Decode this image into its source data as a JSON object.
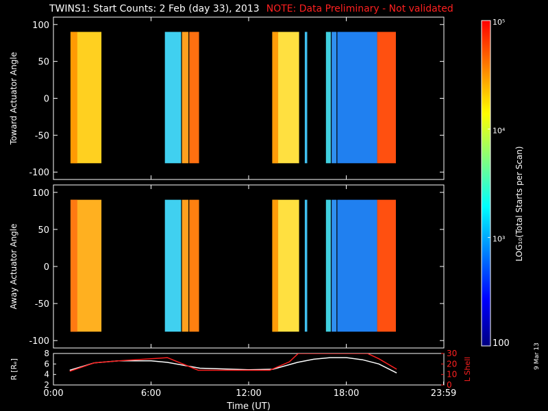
{
  "header": {
    "title": "TWINS1: Start Counts:  2 Feb (day  33), 2013",
    "note": "NOTE: Data Preliminary - Not validated"
  },
  "datestamp": "9 Mar 13",
  "colors": {
    "background": "#000000",
    "axes": "#ffffff",
    "note": "#ff2020",
    "lshell": "#ff2020",
    "radius": "#ffffff"
  },
  "chart_data": [
    {
      "type": "heatmap",
      "name": "toward",
      "ylabel": "Toward Actuator Angle",
      "ylim": [
        -110,
        110
      ],
      "yticks": [
        100,
        50,
        0,
        -50,
        -100
      ],
      "xlim": [
        0,
        24
      ],
      "data_ylim": [
        -88,
        90
      ],
      "blocks": [
        {
          "start": 1.05,
          "end": 2.95,
          "color": "#ffd020",
          "left": "#ff9000"
        },
        {
          "start": 6.85,
          "end": 7.85,
          "color": "#40d0f0"
        },
        {
          "start": 7.9,
          "end": 8.3,
          "color": "#ffa020"
        },
        {
          "start": 8.35,
          "end": 8.95,
          "color": "#ff7010"
        },
        {
          "start": 13.45,
          "end": 15.1,
          "color": "#ffe040",
          "left": "#ff9000"
        },
        {
          "start": 15.45,
          "end": 15.6,
          "color": "#40c0f0"
        },
        {
          "start": 16.75,
          "end": 17.05,
          "color": "#40d0e0"
        },
        {
          "start": 17.1,
          "end": 17.4,
          "color": "#3090f0"
        },
        {
          "start": 17.45,
          "end": 19.9,
          "color": "#2080f0"
        },
        {
          "start": 19.9,
          "end": 21.05,
          "color": "#ff5010"
        }
      ]
    },
    {
      "type": "heatmap",
      "name": "away",
      "ylabel": "Away Actuator Angle",
      "ylim": [
        -110,
        110
      ],
      "yticks": [
        100,
        50,
        0,
        -50,
        -100
      ],
      "xlim": [
        0,
        24
      ],
      "data_ylim": [
        -88,
        90
      ],
      "blocks": [
        {
          "start": 1.05,
          "end": 2.95,
          "color": "#ffb020",
          "left": "#ff7010"
        },
        {
          "start": 6.85,
          "end": 7.85,
          "color": "#40d0f0"
        },
        {
          "start": 7.9,
          "end": 8.3,
          "color": "#ffa020"
        },
        {
          "start": 8.35,
          "end": 8.95,
          "color": "#ff8010"
        },
        {
          "start": 13.45,
          "end": 15.1,
          "color": "#ffe040",
          "left": "#ff9000"
        },
        {
          "start": 15.45,
          "end": 15.6,
          "color": "#40c0f0"
        },
        {
          "start": 16.75,
          "end": 17.05,
          "color": "#40d0e0"
        },
        {
          "start": 17.1,
          "end": 17.4,
          "color": "#3090f0"
        },
        {
          "start": 17.45,
          "end": 19.9,
          "color": "#2080f0"
        },
        {
          "start": 19.9,
          "end": 21.05,
          "color": "#ff5010"
        }
      ]
    },
    {
      "type": "line",
      "name": "orbit",
      "xlabel": "Time (UT)",
      "xticks": [
        0,
        6,
        12,
        18,
        23.98
      ],
      "xticklabels": [
        "0:00",
        "6:00",
        "12:00",
        "18:00",
        "23:59"
      ],
      "xlim": [
        0,
        24
      ],
      "ylabel_left": "R [Rₑ]",
      "ylim_left": [
        2,
        8
      ],
      "yticks_left": [
        8,
        6,
        4,
        2
      ],
      "ylabel_right": "L Shell",
      "ylim_right": [
        0,
        30
      ],
      "yticks_right": [
        30,
        20,
        10,
        0
      ],
      "series": [
        {
          "name": "R [Rₑ]",
          "axis": "left",
          "color": "#ffffff",
          "x": [
            1,
            2.5,
            4,
            6,
            7,
            9,
            12,
            13.5,
            15,
            16,
            17,
            18,
            19,
            20,
            21.1
          ],
          "y": [
            4.8,
            6.2,
            6.6,
            6.6,
            6.3,
            5.2,
            4.9,
            5.0,
            6.3,
            6.9,
            7.2,
            7.2,
            6.8,
            6.0,
            4.3
          ]
        },
        {
          "name": "L Shell",
          "axis": "right",
          "color": "#ff2020",
          "x": [
            1,
            2.5,
            4,
            6,
            7,
            8.9,
            12,
            13.3,
            14.5,
            15.05,
            16.5,
            18,
            19.3,
            20,
            21.1
          ],
          "y": [
            13,
            21,
            23,
            25,
            26,
            14,
            14,
            14,
            22,
            30,
            30,
            30,
            30,
            25,
            15
          ]
        }
      ]
    }
  ],
  "colorbar": {
    "label": "LOG₁₀(Total Starts per Scan)",
    "tick_labels": [
      "10⁵",
      "10⁴",
      "10³",
      "100"
    ],
    "log_values": [
      5,
      4,
      3,
      2
    ],
    "colors": [
      "#ff0000",
      "#ff8000",
      "#ffff00",
      "#80ff80",
      "#00ffff",
      "#0080ff",
      "#0000ff",
      "#000080"
    ]
  }
}
